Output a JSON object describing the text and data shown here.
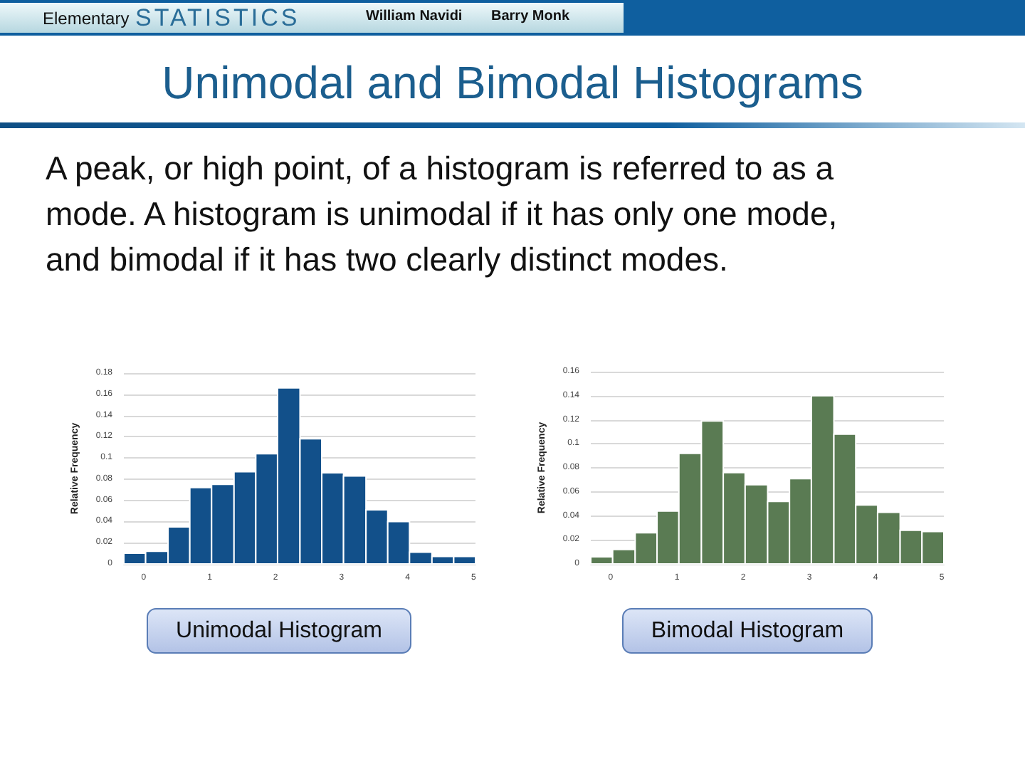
{
  "chart_data": [
    {
      "type": "other",
      "title": "Unimodal and Bimodal Histograms",
      "subtitle": "A peak, or high point, of a histogram is referred to as a mode. A histogram is unimodal if it has only one mode, and bimodal if it has two clearly distinct modes.",
      "annotations": [
        "Elementary",
        "STATISTICS",
        "William Navidi",
        "Barry Monk"
      ]
    },
    {
      "type": "histogram",
      "title": "Unimodal Histogram",
      "ylabel": "Relative Frequency",
      "bins": [
        -0.3,
        0.03,
        0.37,
        0.7,
        1.03,
        1.37,
        1.7,
        2.03,
        2.37,
        2.7,
        3.03,
        3.37,
        3.7,
        4.03,
        4.37,
        4.7,
        5.03
      ],
      "values": [
        0.01,
        0.012,
        0.035,
        0.072,
        0.075,
        0.087,
        0.104,
        0.166,
        0.118,
        0.086,
        0.083,
        0.051,
        0.04,
        0.011,
        0.007,
        0.007
      ],
      "color": "#12508a",
      "xlim": [
        -0.3,
        5.03
      ],
      "xticks": [
        0,
        1,
        2,
        3,
        4,
        5
      ],
      "ylim": [
        0,
        0.18
      ],
      "yticks": [
        0,
        0.02,
        0.04,
        0.06,
        0.08,
        0.1,
        0.12,
        0.14,
        0.16,
        0.18
      ],
      "grid": "y"
    },
    {
      "type": "histogram",
      "title": "Bimodal Histogram",
      "ylabel": "Relative Frequency",
      "bins": [
        -0.3,
        0.03,
        0.37,
        0.7,
        1.03,
        1.37,
        1.7,
        2.03,
        2.37,
        2.7,
        3.03,
        3.37,
        3.7,
        4.03,
        4.37,
        4.7,
        5.03
      ],
      "values": [
        0.006,
        0.012,
        0.026,
        0.044,
        0.092,
        0.119,
        0.076,
        0.066,
        0.052,
        0.071,
        0.14,
        0.108,
        0.049,
        0.043,
        0.028,
        0.027
      ],
      "color": "#5a7b53",
      "xlim": [
        -0.3,
        5.03
      ],
      "xticks": [
        0,
        1,
        2,
        3,
        4,
        5
      ],
      "ylim": [
        0,
        0.16
      ],
      "yticks": [
        0,
        0.02,
        0.04,
        0.06,
        0.08,
        0.1,
        0.12,
        0.14,
        0.16
      ],
      "grid": "y"
    }
  ]
}
